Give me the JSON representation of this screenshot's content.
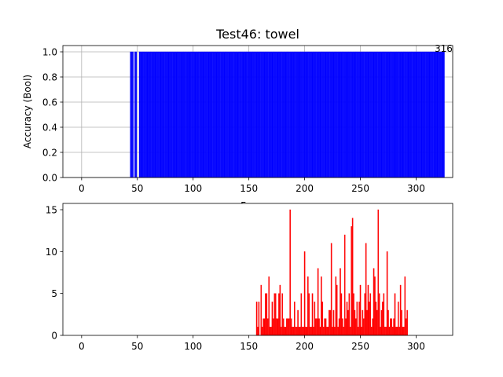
{
  "chart_data": [
    {
      "type": "bar",
      "title": "Test46: towel",
      "xlabel": "Frames",
      "ylabel": "Accuracy (Bool)",
      "annotation": "316",
      "xlim": [
        -16.8,
        332.8
      ],
      "ylim": [
        0,
        1.05
      ],
      "xticks": [
        0,
        50,
        100,
        150,
        200,
        250,
        300
      ],
      "yticks": [
        0.0,
        0.2,
        0.4,
        0.6,
        0.8,
        1.0
      ],
      "ytick_labels": [
        "0.0",
        "0.2",
        "0.4",
        "0.6",
        "0.8",
        "1.0"
      ],
      "grid": true,
      "color": "#0000ff",
      "x_start": 0,
      "values": [
        0,
        0,
        0,
        0,
        0,
        0,
        0,
        0,
        0,
        0,
        0,
        0,
        0,
        0,
        0,
        0,
        0,
        0,
        0,
        0,
        0,
        0,
        0,
        0,
        0,
        0,
        0,
        0,
        0,
        0,
        0,
        0,
        0,
        0,
        0,
        0,
        0,
        0,
        0,
        0,
        0,
        0,
        0,
        0,
        1,
        1,
        1,
        0,
        1,
        1,
        0,
        0,
        1,
        1,
        1,
        1,
        1,
        1,
        1,
        1,
        1,
        1,
        1,
        1,
        1,
        1,
        1,
        1,
        1,
        1,
        1,
        1,
        1,
        1,
        1,
        1,
        1,
        1,
        1,
        1,
        1,
        1,
        1,
        1,
        1,
        1,
        1,
        1,
        1,
        1,
        1,
        1,
        1,
        1,
        1,
        1,
        1,
        1,
        1,
        1,
        1,
        1,
        1,
        1,
        1,
        1,
        1,
        1,
        1,
        1,
        1,
        1,
        1,
        1,
        1,
        1,
        1,
        1,
        1,
        1,
        1,
        1,
        1,
        1,
        1,
        1,
        1,
        1,
        1,
        1,
        1,
        1,
        1,
        1,
        1,
        1,
        1,
        1,
        1,
        1,
        1,
        1,
        1,
        1,
        1,
        1,
        1,
        1,
        1,
        1,
        1,
        1,
        1,
        1,
        1,
        1,
        1,
        1,
        1,
        1,
        1,
        1,
        1,
        1,
        1,
        1,
        1,
        1,
        1,
        1,
        1,
        1,
        1,
        1,
        1,
        1,
        1,
        1,
        1,
        1,
        1,
        1,
        1,
        1,
        1,
        1,
        1,
        1,
        1,
        1,
        1,
        1,
        1,
        1,
        1,
        1,
        1,
        1,
        1,
        1,
        1,
        1,
        1,
        1,
        1,
        1,
        1,
        1,
        1,
        1,
        1,
        1,
        1,
        1,
        1,
        1,
        1,
        1,
        1,
        1,
        1,
        1,
        1,
        1,
        1,
        1,
        1,
        1,
        1,
        1,
        1,
        1,
        1,
        1,
        1,
        1,
        1,
        1,
        1,
        1,
        1,
        1,
        1,
        1,
        1,
        1,
        1,
        1,
        1,
        1,
        1,
        1,
        1,
        1,
        1,
        1,
        1,
        1,
        1,
        1,
        1,
        1,
        1,
        1,
        1,
        1,
        1,
        1,
        1,
        1,
        1,
        1,
        1,
        1,
        1,
        1,
        1,
        1,
        1,
        1,
        1,
        1,
        1,
        1,
        1,
        1,
        1,
        1,
        1,
        1,
        1,
        1,
        1,
        1,
        1,
        1,
        1,
        1,
        1,
        1,
        1,
        1,
        1,
        1,
        1,
        1,
        1,
        1,
        1,
        1,
        1,
        1,
        1,
        1,
        1,
        1,
        1,
        1,
        1,
        1,
        1,
        1,
        1,
        1,
        1,
        1
      ]
    },
    {
      "type": "bar",
      "title": "",
      "xlabel": "",
      "ylabel": "",
      "xlim": [
        -16.8,
        332.8
      ],
      "ylim": [
        0,
        15.75
      ],
      "xticks": [
        0,
        50,
        100,
        150,
        200,
        250,
        300
      ],
      "yticks": [
        0,
        5,
        10,
        15
      ],
      "ytick_labels": [
        "0",
        "5",
        "10",
        "15"
      ],
      "grid": false,
      "color": "#ff0000",
      "x_start": 157,
      "values": [
        4,
        1,
        4,
        0,
        6,
        1,
        2,
        2,
        5,
        5,
        2,
        7,
        1,
        1,
        4,
        2,
        5,
        5,
        2,
        2,
        5,
        6,
        1,
        5,
        2,
        1,
        1,
        2,
        2,
        2,
        15,
        2,
        1,
        1,
        4,
        1,
        1,
        3,
        1,
        1,
        5,
        1,
        1,
        10,
        1,
        1,
        7,
        5,
        1,
        1,
        5,
        1,
        4,
        2,
        2,
        8,
        2,
        1,
        7,
        4,
        1,
        2,
        2,
        1,
        1,
        3,
        3,
        11,
        1,
        3,
        1,
        7,
        6,
        1,
        2,
        8,
        5,
        2,
        1,
        12,
        2,
        4,
        3,
        5,
        1,
        13,
        14,
        5,
        3,
        2,
        4,
        1,
        4,
        6,
        1,
        3,
        2,
        5,
        11,
        3,
        6,
        4,
        5,
        1,
        2,
        8,
        7,
        4,
        3,
        15,
        5,
        1,
        3,
        4,
        5,
        1,
        1,
        10,
        3,
        1,
        2,
        2,
        1,
        2,
        5,
        1,
        1,
        4,
        1,
        6,
        3,
        1,
        1,
        7,
        2,
        3
      ]
    }
  ]
}
